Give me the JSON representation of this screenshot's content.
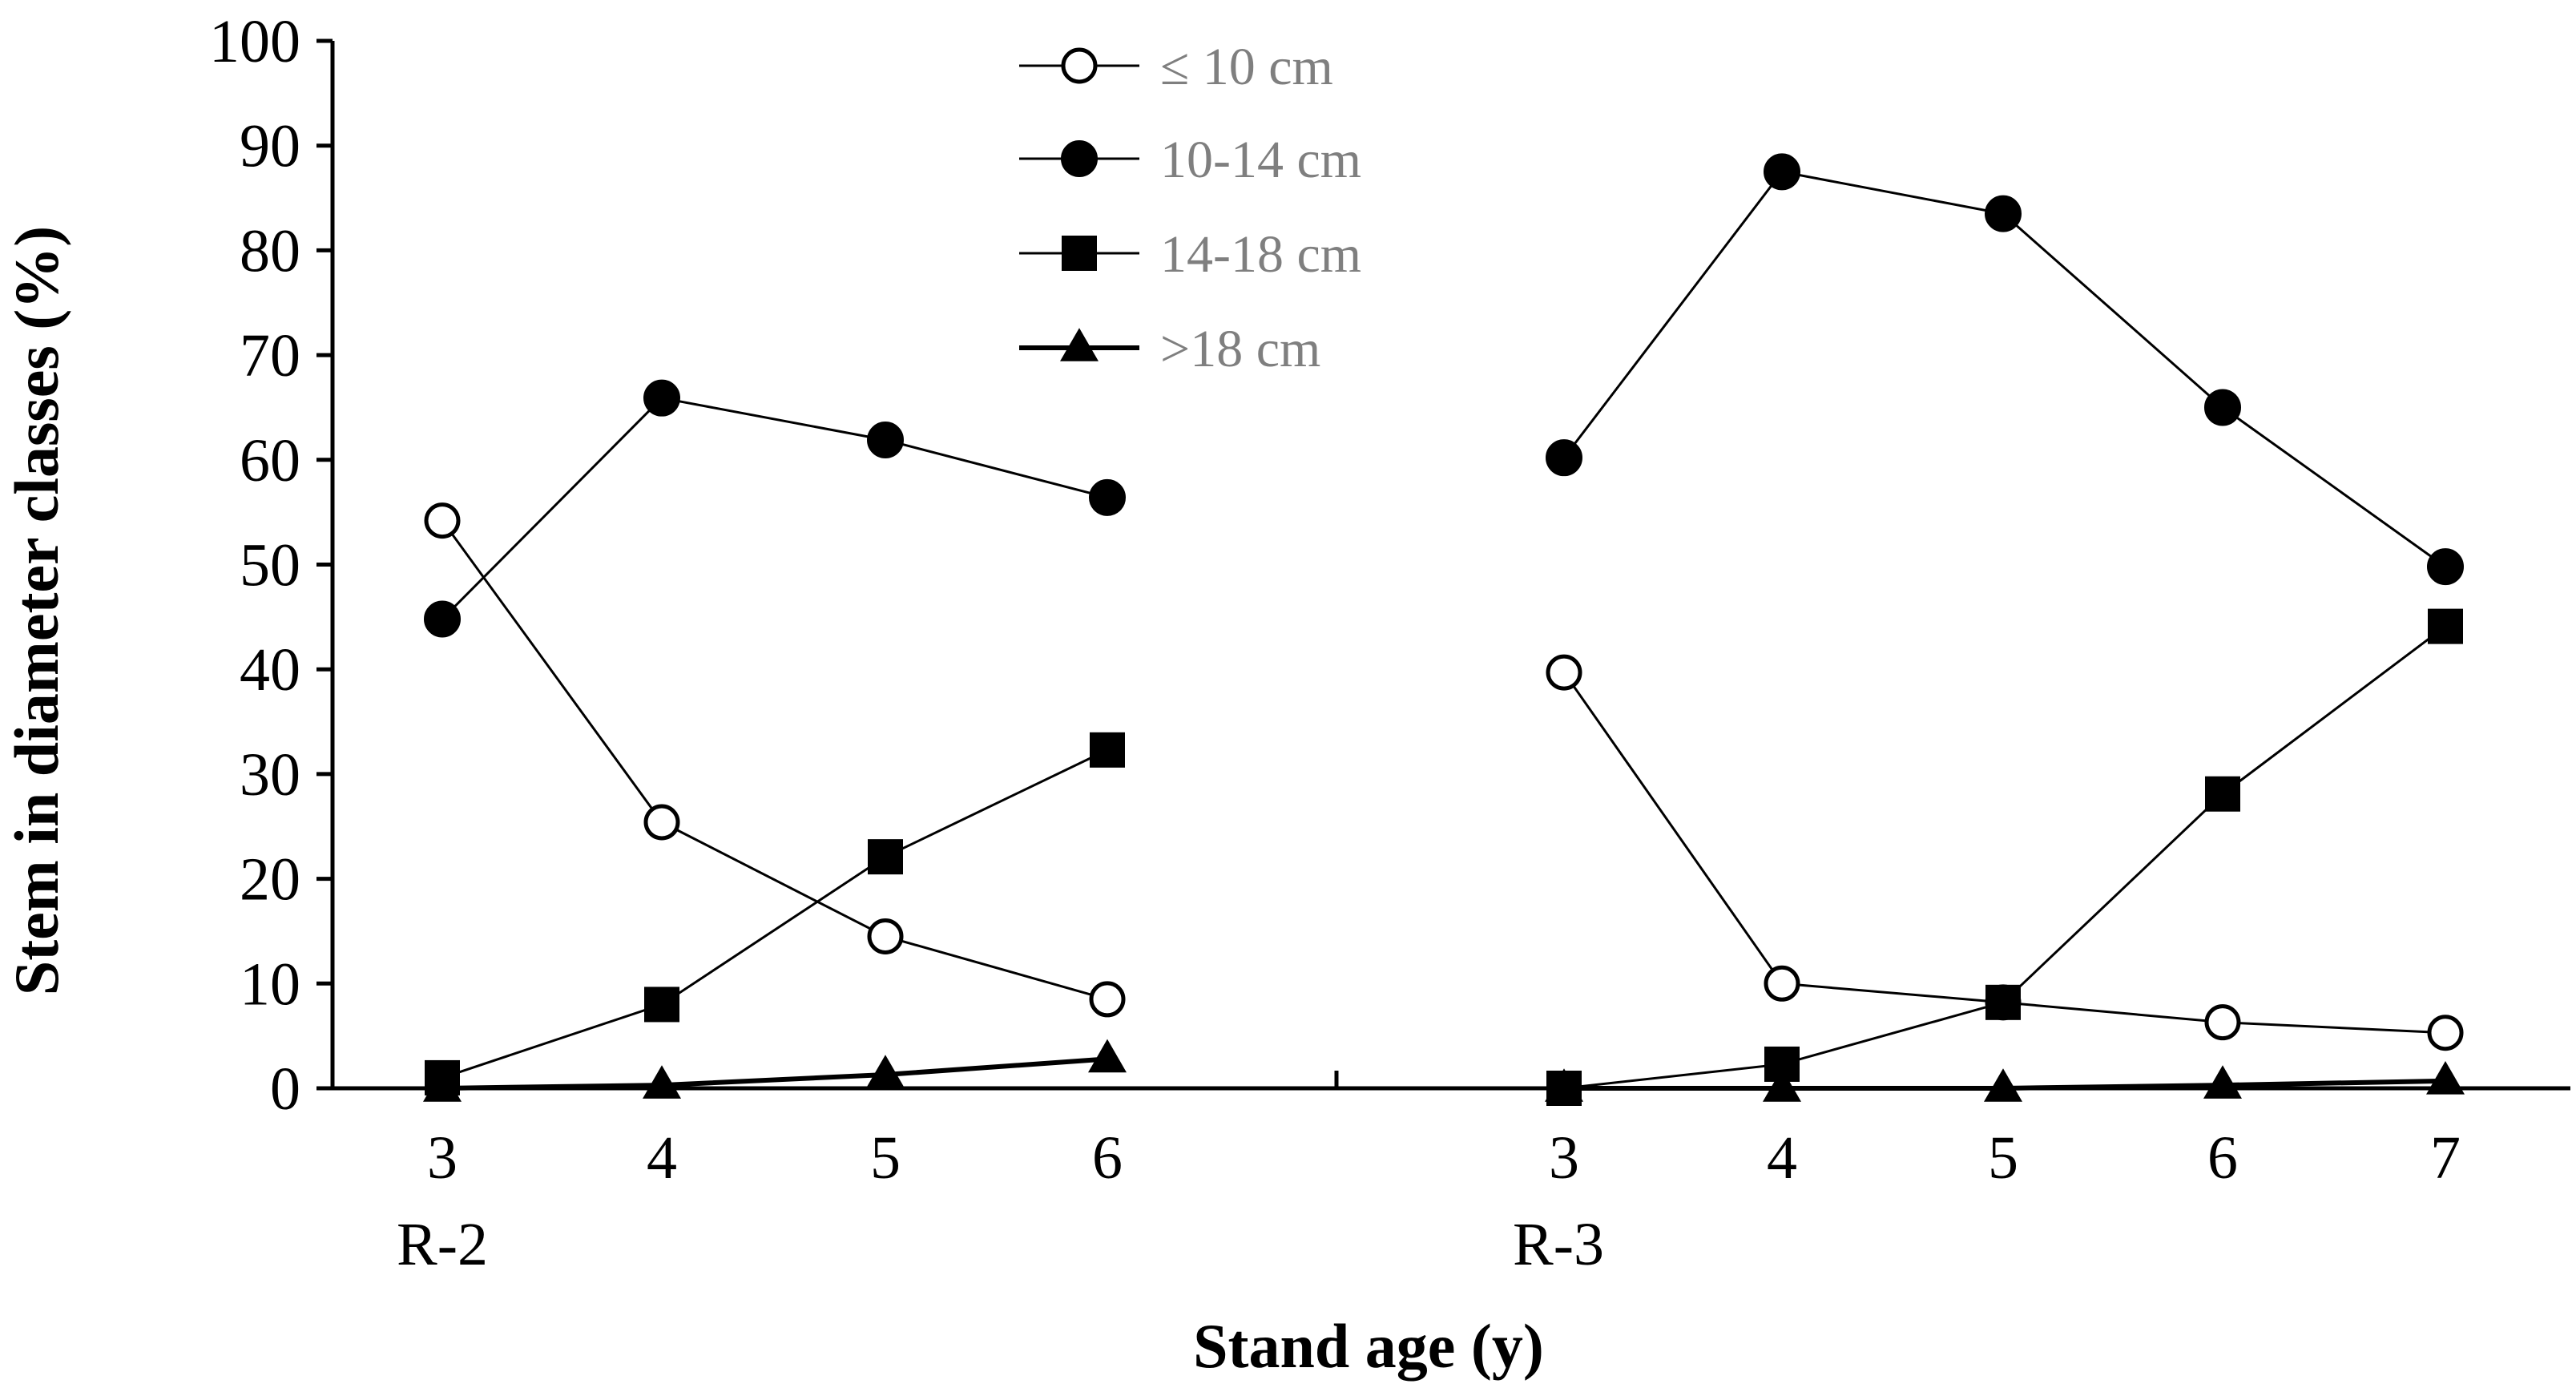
{
  "chart_data": {
    "type": "line",
    "title": "",
    "xlabel": "Stand age (y)",
    "ylabel": "Stem in diameter classes (%)",
    "ylim": [
      0,
      100
    ],
    "yticks": [
      "0",
      "10",
      "20",
      "30",
      "40",
      "50",
      "60",
      "70",
      "80",
      "90",
      "100"
    ],
    "groups": [
      {
        "name": "R-2",
        "categories": [
          "3",
          "4",
          "5",
          "6"
        ]
      },
      {
        "name": "R-3",
        "categories": [
          "3",
          "4",
          "5",
          "6",
          "7"
        ]
      }
    ],
    "series": [
      {
        "name": "≤ 10 cm",
        "marker": "circle-open",
        "values": {
          "R-2": [
            54.2,
            25.4,
            14.5,
            8.5
          ],
          "R-3": [
            39.7,
            10.0,
            8.2,
            6.3,
            5.3
          ]
        }
      },
      {
        "name": "10-14 cm",
        "marker": "circle-filled",
        "values": {
          "R-2": [
            44.8,
            65.9,
            61.9,
            56.4
          ],
          "R-3": [
            60.2,
            87.5,
            83.5,
            65.0,
            49.8
          ]
        }
      },
      {
        "name": "14-18 cm",
        "marker": "square",
        "values": {
          "R-2": [
            1.0,
            8.0,
            22.1,
            32.3
          ],
          "R-3": [
            0.0,
            2.3,
            8.2,
            28.1,
            44.1
          ]
        }
      },
      {
        "name": ">18 cm",
        "marker": "triangle",
        "values": {
          "R-2": [
            0.0,
            0.3,
            1.3,
            2.8
          ],
          "R-3": [
            0.0,
            0.0,
            0.0,
            0.3,
            0.7
          ]
        }
      }
    ],
    "legend_position": "top-center"
  },
  "colors": {
    "line": "#000000",
    "legend_text": "#7f7f7f",
    "background": "#ffffff"
  }
}
